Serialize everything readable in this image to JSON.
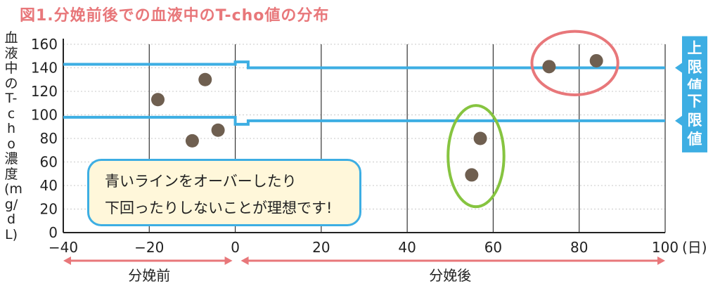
{
  "title": "図1.分娩前後での血液中のT-cho値の分布",
  "chart_data": {
    "type": "scatter",
    "ylabel": "血液中のT-cho濃度(mg/dL)",
    "xlabel": "",
    "x_unit_label": "(日)",
    "xlim": [
      -40,
      100
    ],
    "ylim": [
      0,
      160
    ],
    "x_ticks": [
      -40,
      -20,
      0,
      20,
      40,
      60,
      80,
      100
    ],
    "y_ticks": [
      0,
      20,
      40,
      60,
      80,
      100,
      120,
      140,
      160
    ],
    "x_tick_labels": [
      "−40",
      "−20",
      "0",
      "20",
      "40",
      "60",
      "80",
      "100"
    ],
    "y_tick_labels": [
      "0",
      "20",
      "40",
      "60",
      "80",
      "100",
      "120",
      "140",
      "160"
    ],
    "grid": "vertical",
    "points": [
      {
        "x": -18,
        "y": 113
      },
      {
        "x": -7,
        "y": 130
      },
      {
        "x": -10,
        "y": 78
      },
      {
        "x": -4,
        "y": 87
      },
      {
        "x": 55,
        "y": 49
      },
      {
        "x": 57,
        "y": 80
      },
      {
        "x": 73,
        "y": 141
      },
      {
        "x": 84,
        "y": 146
      }
    ],
    "reference_lines": [
      {
        "label": "上限値",
        "segments": [
          {
            "from": -40,
            "to": 0,
            "y": 143
          },
          {
            "from": 0,
            "to": 3,
            "y": 145
          },
          {
            "from": 3,
            "to": 100,
            "y": 140
          }
        ]
      },
      {
        "label": "下限値",
        "segments": [
          {
            "from": -40,
            "to": 0,
            "y": 98
          },
          {
            "from": 0,
            "to": 3,
            "y": 92
          },
          {
            "from": 3,
            "to": 100,
            "y": 95
          }
        ]
      }
    ],
    "periods": [
      {
        "label": "分娩前",
        "from": -40,
        "to": 0
      },
      {
        "label": "分娩後",
        "from": 0,
        "to": 100
      }
    ],
    "highlights": [
      {
        "color": "#e8777a",
        "cx": 79,
        "cy": 144,
        "rx": 10,
        "ry": 27
      },
      {
        "color": "#86c440",
        "cx": 56,
        "cy": 65,
        "rx": 6.5,
        "ry": 43
      }
    ],
    "note_lines": [
      "青いラインをオーバーしたり",
      "下回ったりしないことが理想です!"
    ]
  },
  "colors": {
    "line": "#3daee3",
    "dot": "#6f5f50",
    "title": "#e8777a",
    "arrow": "#e8777a",
    "note_border": "#3daee3",
    "note_bg": "#fff7da"
  }
}
